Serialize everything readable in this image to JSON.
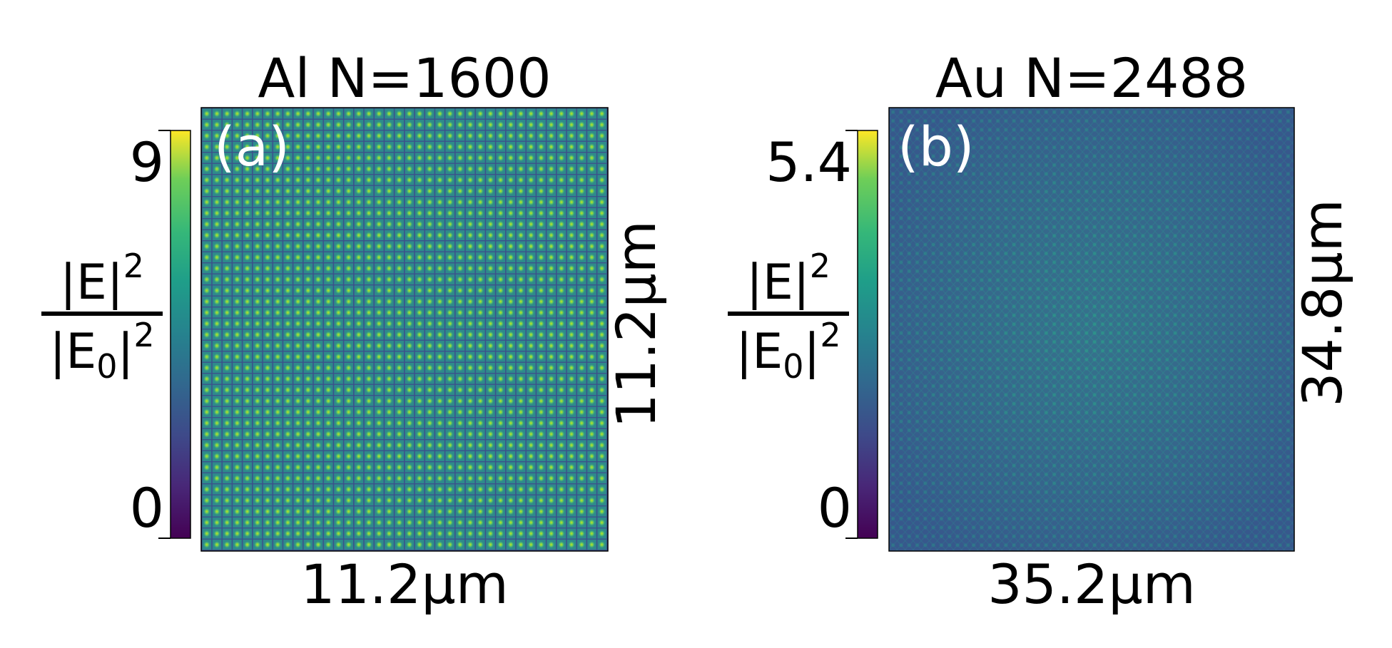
{
  "chart_data": [
    {
      "type": "heatmap",
      "title": "Al N=1600",
      "panel_label": "(a)",
      "xlabel": "11.2μm",
      "ylabel": "11.2μm",
      "colorbar": {
        "label_num": "|E|",
        "label_num_sup": "2",
        "label_den": "|E",
        "label_den_sub": "0",
        "label_den_tail": "|",
        "label_den_sup": "2",
        "min": 0,
        "max": 9,
        "ticks": [
          "9",
          "0"
        ],
        "colormap": "viridis"
      },
      "grid_cells": 40,
      "background_color": "#2e8a8c",
      "spot_color": "#5ec962"
    },
    {
      "type": "heatmap",
      "title": "Au N=2488",
      "panel_label": "(b)",
      "xlabel": "35.2μm",
      "ylabel": "34.8μm",
      "colorbar": {
        "label_num": "|E|",
        "label_num_sup": "2",
        "label_den": "|E",
        "label_den_sub": "0",
        "label_den_tail": "|",
        "label_den_sup": "2",
        "min": 0,
        "max": 5.4,
        "ticks": [
          "5.4",
          "0"
        ],
        "colormap": "viridis"
      },
      "grid_cells": 60,
      "background_color": "#35608d",
      "spot_color": "#2a9d8a"
    }
  ]
}
